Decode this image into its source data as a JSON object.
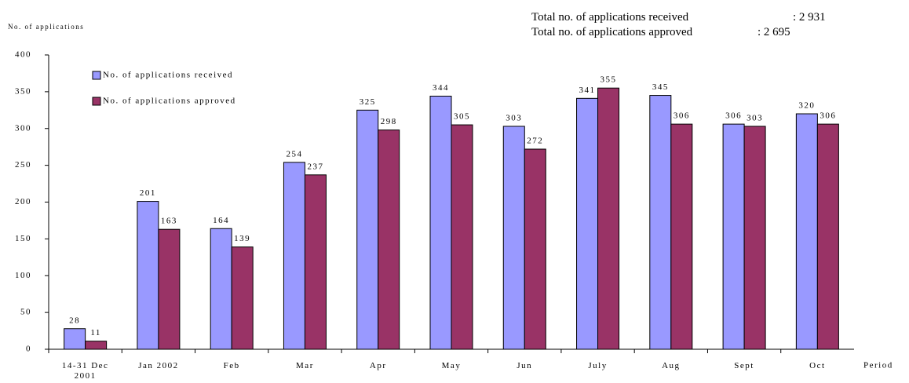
{
  "chart_data": {
    "type": "bar",
    "y_label": "No. of applications",
    "x_label": "Period",
    "annotations": [
      {
        "label": "Total no. of applications received",
        "value": ": 2 931"
      },
      {
        "label": "Total no. of applications approved",
        "value": ": 2 695"
      }
    ],
    "categories": [
      "14-31 Dec 2001",
      "Jan 2002",
      "Feb",
      "Mar",
      "Apr",
      "May",
      "Jun",
      "July",
      "Aug",
      "Sept",
      "Oct"
    ],
    "series": [
      {
        "name": "No. of applications received",
        "color": "#9999ff",
        "values": [
          28,
          201,
          164,
          254,
          325,
          344,
          303,
          341,
          345,
          306,
          320
        ]
      },
      {
        "name": "No. of applications approved",
        "color": "#993366",
        "values": [
          11,
          163,
          139,
          237,
          298,
          305,
          272,
          355,
          306,
          303,
          306
        ]
      }
    ],
    "ylim": [
      0,
      400
    ],
    "yticks": [
      0,
      50,
      100,
      150,
      200,
      250,
      300,
      350,
      400
    ],
    "legend": "top-left"
  }
}
